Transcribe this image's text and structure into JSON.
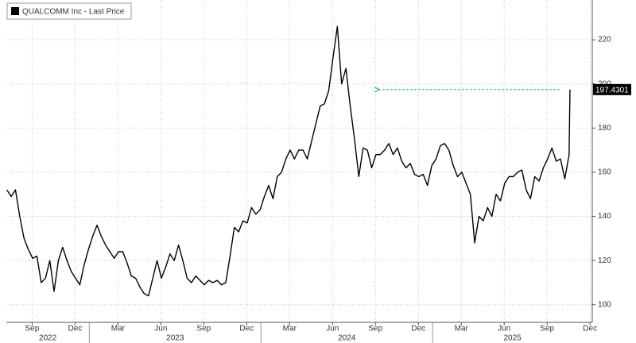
{
  "chart_data": {
    "type": "line",
    "series": [
      {
        "name": "QUALCOMM Inc - Last Price",
        "color": "#000000",
        "x": [
          2022.52,
          2022.545,
          2022.57,
          2022.595,
          2022.62,
          2022.645,
          2022.67,
          2022.695,
          2022.72,
          2022.745,
          2022.77,
          2022.795,
          2022.82,
          2022.845,
          2022.87,
          2022.895,
          2022.92,
          2022.945,
          2022.97,
          2022.995,
          2023.02,
          2023.045,
          2023.07,
          2023.095,
          2023.12,
          2023.145,
          2023.17,
          2023.195,
          2023.22,
          2023.245,
          2023.27,
          2023.295,
          2023.32,
          2023.345,
          2023.37,
          2023.395,
          2023.42,
          2023.445,
          2023.47,
          2023.495,
          2023.52,
          2023.545,
          2023.57,
          2023.595,
          2023.62,
          2023.645,
          2023.67,
          2023.695,
          2023.72,
          2023.745,
          2023.77,
          2023.795,
          2023.82,
          2023.845,
          2023.87,
          2023.895,
          2023.92,
          2023.945,
          2023.97,
          2023.995,
          2024.02,
          2024.045,
          2024.07,
          2024.095,
          2024.12,
          2024.145,
          2024.17,
          2024.195,
          2024.22,
          2024.245,
          2024.27,
          2024.295,
          2024.32,
          2024.345,
          2024.37,
          2024.395,
          2024.42,
          2024.445,
          2024.47,
          2024.495,
          2024.52,
          2024.545,
          2024.57,
          2024.595,
          2024.62,
          2024.645,
          2024.67,
          2024.695,
          2024.72,
          2024.745,
          2024.77,
          2024.795,
          2024.82,
          2024.845,
          2024.87,
          2024.895,
          2024.92,
          2024.945,
          2024.97,
          2024.995,
          2025.02,
          2025.045,
          2025.07,
          2025.095,
          2025.12,
          2025.145,
          2025.17,
          2025.195,
          2025.22,
          2025.245,
          2025.27,
          2025.295,
          2025.32,
          2025.345,
          2025.37,
          2025.395,
          2025.42,
          2025.445,
          2025.47,
          2025.495,
          2025.52,
          2025.545,
          2025.57,
          2025.595,
          2025.62,
          2025.645,
          2025.67,
          2025.695,
          2025.72,
          2025.745,
          2025.77,
          2025.795,
          2025.8
        ],
        "values": [
          152,
          149,
          152,
          140,
          130,
          125,
          121,
          122,
          110,
          112,
          120,
          106,
          120,
          126,
          120,
          115,
          112,
          109,
          118,
          125,
          131,
          136,
          131,
          127,
          124,
          121,
          124,
          124,
          119,
          113,
          112,
          108,
          105,
          104,
          112,
          120,
          112,
          117,
          123,
          120,
          127,
          120,
          112,
          110,
          113,
          111,
          109,
          111,
          110,
          111,
          109,
          110,
          122,
          135,
          133,
          138,
          137,
          144,
          141,
          143,
          149,
          154,
          148,
          158,
          160,
          166,
          170,
          166,
          170,
          170,
          166,
          174,
          182,
          190,
          191,
          197,
          212,
          226,
          200,
          207,
          190,
          175,
          158,
          171,
          170,
          162,
          168,
          168,
          170,
          173,
          168,
          171,
          165,
          162,
          164,
          159,
          158,
          159,
          154,
          163,
          166,
          172,
          173,
          170,
          163,
          158,
          160,
          155,
          150,
          128,
          140,
          138,
          144,
          140,
          150,
          147,
          155,
          158,
          158,
          160,
          161,
          152,
          148,
          158,
          156,
          162,
          166,
          171,
          165,
          166,
          157,
          168,
          197.4301
        ]
      }
    ],
    "reference_arrow": {
      "x": [
        2025.74,
        2024.69
      ],
      "y": 197.4301,
      "color": "#2bb5b5"
    },
    "xlim": [
      2022.517,
      2025.93
    ],
    "ylim": [
      92,
      238
    ],
    "yticks": [
      100,
      120,
      140,
      160,
      180,
      200,
      220
    ],
    "xticks": [
      {
        "value": 2022.667,
        "label": "Sep"
      },
      {
        "value": 2022.917,
        "label": "Dec"
      },
      {
        "value": 2023.167,
        "label": "Mar"
      },
      {
        "value": 2023.417,
        "label": "Jun"
      },
      {
        "value": 2023.667,
        "label": "Sep"
      },
      {
        "value": 2023.917,
        "label": "Dec"
      },
      {
        "value": 2024.167,
        "label": "Mar"
      },
      {
        "value": 2024.417,
        "label": "Jun"
      },
      {
        "value": 2024.667,
        "label": "Sep"
      },
      {
        "value": 2024.917,
        "label": "Dec"
      },
      {
        "value": 2025.167,
        "label": "Mar"
      },
      {
        "value": 2025.417,
        "label": "Jun"
      },
      {
        "value": 2025.667,
        "label": "Sep"
      },
      {
        "value": 2025.917,
        "label": "Dec"
      }
    ],
    "year_ticks": [
      2022,
      2023,
      2024,
      2025
    ],
    "grid": true,
    "legend": "top-left"
  }
}
